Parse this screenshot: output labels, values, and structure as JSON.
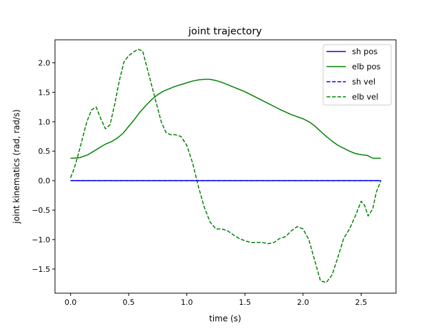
{
  "chart_data": {
    "type": "line",
    "title": "joint trajectory",
    "xlabel": "time (s)",
    "ylabel": "joint kinematics (rad, rad/s)",
    "xlim": [
      -0.134,
      2.8
    ],
    "ylim": [
      -1.91,
      2.39
    ],
    "xticks": [
      0.0,
      0.5,
      1.0,
      1.5,
      2.0,
      2.5
    ],
    "xtick_labels": [
      "0.0",
      "0.5",
      "1.0",
      "1.5",
      "2.0",
      "2.5"
    ],
    "yticks": [
      -1.5,
      -1.0,
      -0.5,
      0.0,
      0.5,
      1.0,
      1.5,
      2.0
    ],
    "ytick_labels": [
      "−1.5",
      "−1.0",
      "−0.5",
      "0.0",
      "0.5",
      "1.0",
      "1.5",
      "2.0"
    ],
    "grid": false,
    "legend_position": "upper right",
    "series": [
      {
        "name": "sh pos",
        "color": "#0000ff",
        "style": "solid",
        "x": [
          0.0,
          2.67
        ],
        "y": [
          0.0,
          0.0
        ]
      },
      {
        "name": "elb pos",
        "color": "#008000",
        "style": "solid",
        "x": [
          0.0,
          0.08,
          0.15,
          0.2,
          0.25,
          0.3,
          0.35,
          0.4,
          0.45,
          0.5,
          0.55,
          0.6,
          0.65,
          0.7,
          0.75,
          0.8,
          0.85,
          0.9,
          0.95,
          1.0,
          1.05,
          1.1,
          1.15,
          1.2,
          1.25,
          1.3,
          1.4,
          1.5,
          1.6,
          1.7,
          1.8,
          1.9,
          2.0,
          2.05,
          2.1,
          2.15,
          2.2,
          2.25,
          2.3,
          2.35,
          2.4,
          2.45,
          2.5,
          2.55,
          2.6,
          2.67
        ],
        "y": [
          0.38,
          0.39,
          0.44,
          0.5,
          0.56,
          0.62,
          0.66,
          0.72,
          0.8,
          0.92,
          1.04,
          1.17,
          1.28,
          1.38,
          1.46,
          1.52,
          1.56,
          1.6,
          1.63,
          1.66,
          1.69,
          1.71,
          1.72,
          1.72,
          1.7,
          1.67,
          1.59,
          1.51,
          1.41,
          1.31,
          1.21,
          1.12,
          1.05,
          1.0,
          0.93,
          0.84,
          0.75,
          0.67,
          0.6,
          0.55,
          0.5,
          0.46,
          0.44,
          0.43,
          0.38,
          0.38
        ]
      },
      {
        "name": "sh vel",
        "color": "#0000ff",
        "style": "dashed",
        "x": [
          0.0,
          2.67
        ],
        "y": [
          0.0,
          0.0
        ]
      },
      {
        "name": "elb vel",
        "color": "#008000",
        "style": "dashed",
        "x": [
          0.0,
          0.03,
          0.06,
          0.1,
          0.14,
          0.18,
          0.22,
          0.26,
          0.3,
          0.34,
          0.38,
          0.42,
          0.46,
          0.5,
          0.54,
          0.58,
          0.62,
          0.66,
          0.7,
          0.74,
          0.78,
          0.82,
          0.86,
          0.9,
          0.95,
          1.0,
          1.05,
          1.1,
          1.15,
          1.2,
          1.25,
          1.3,
          1.35,
          1.4,
          1.45,
          1.5,
          1.55,
          1.6,
          1.65,
          1.7,
          1.75,
          1.8,
          1.85,
          1.9,
          1.95,
          2.0,
          2.05,
          2.1,
          2.15,
          2.2,
          2.25,
          2.3,
          2.35,
          2.4,
          2.45,
          2.48,
          2.5,
          2.53,
          2.56,
          2.6,
          2.63,
          2.67
        ],
        "y": [
          0.05,
          0.2,
          0.4,
          0.7,
          1.0,
          1.2,
          1.25,
          1.05,
          0.88,
          0.95,
          1.3,
          1.7,
          2.02,
          2.12,
          2.18,
          2.23,
          2.2,
          1.9,
          1.6,
          1.3,
          1.0,
          0.82,
          0.78,
          0.78,
          0.75,
          0.6,
          0.3,
          -0.1,
          -0.45,
          -0.7,
          -0.82,
          -0.82,
          -0.85,
          -0.92,
          -0.98,
          -1.02,
          -1.05,
          -1.05,
          -1.05,
          -1.07,
          -1.05,
          -0.98,
          -0.95,
          -0.85,
          -0.78,
          -0.82,
          -1.0,
          -1.35,
          -1.7,
          -1.73,
          -1.6,
          -1.3,
          -0.98,
          -0.82,
          -0.6,
          -0.45,
          -0.35,
          -0.42,
          -0.6,
          -0.48,
          -0.2,
          0.0
        ]
      }
    ]
  }
}
